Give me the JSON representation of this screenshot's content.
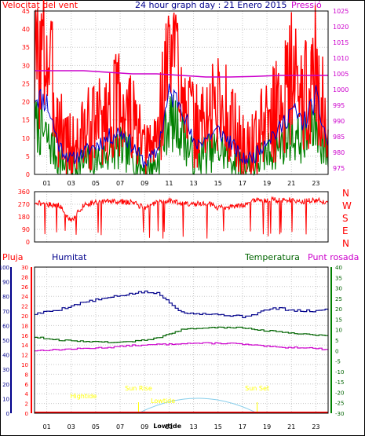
{
  "header": {
    "left_label": "Velocitat del vent",
    "title": "24 hour graph day : 21 Enero 2015",
    "right_label": "Pressió"
  },
  "lower_labels": {
    "rain": "Pluja",
    "humidity": "Humitat",
    "temperature": "Temperatura",
    "dewpoint": "Punt rosada"
  },
  "colors": {
    "wind": "#ff0000",
    "wind_avg": "#0000cc",
    "wind_low": "#008000",
    "pressure": "#cc00cc",
    "humidity": "#00008b",
    "temperature": "#006400",
    "dewpoint": "#cc00cc",
    "sun": "#ffff00",
    "sun_curve": "#87ceeb",
    "grid": "#c8c8c8",
    "frame": "#000000"
  },
  "chart_data": [
    {
      "id": "wind_pressure",
      "type": "line",
      "title": "24 hour graph day : 21 Enero 2015",
      "x_ticks": [
        "01",
        "03",
        "05",
        "07",
        "09",
        "11",
        "13",
        "15",
        "17",
        "19",
        "21",
        "23"
      ],
      "y_left": {
        "label": "Velocitat del vent",
        "range": [
          0,
          45
        ],
        "ticks": [
          0,
          5,
          10,
          15,
          20,
          25,
          30,
          35,
          40,
          45
        ]
      },
      "y_right": {
        "label": "Pressió",
        "range": [
          973,
          1025
        ],
        "ticks": [
          975,
          980,
          985,
          990,
          995,
          1000,
          1005,
          1010,
          1015,
          1020,
          1025
        ]
      },
      "series": [
        {
          "name": "Velocitat del vent",
          "axis": "left",
          "x": [
            0,
            1,
            2,
            3,
            4,
            5,
            6,
            7,
            8,
            9,
            10,
            11,
            12,
            13,
            14,
            15,
            16,
            17,
            18,
            19,
            20,
            21,
            22,
            23,
            24
          ],
          "values": [
            30,
            34,
            14,
            7,
            11,
            14,
            17,
            20,
            15,
            5,
            10,
            34,
            30,
            12,
            15,
            20,
            15,
            7,
            8,
            15,
            18,
            27,
            20,
            29,
            10
          ]
        },
        {
          "name": "Wind average",
          "axis": "left",
          "x": [
            0,
            1,
            2,
            3,
            4,
            5,
            6,
            7,
            8,
            9,
            10,
            11,
            12,
            13,
            14,
            15,
            16,
            17,
            18,
            19,
            20,
            21,
            22,
            23,
            24
          ],
          "values": [
            22,
            20,
            8,
            4,
            6,
            8,
            10,
            12,
            8,
            3,
            6,
            22,
            20,
            8,
            10,
            12,
            9,
            4,
            5,
            10,
            12,
            18,
            14,
            21,
            8
          ]
        },
        {
          "name": "Wind low",
          "axis": "left",
          "x": [
            0,
            1,
            2,
            3,
            4,
            5,
            6,
            7,
            8,
            9,
            10,
            11,
            12,
            13,
            14,
            15,
            16,
            17,
            18,
            19,
            20,
            21,
            22,
            23,
            24
          ],
          "values": [
            14,
            10,
            4,
            2,
            3,
            4,
            6,
            7,
            5,
            1,
            3,
            15,
            12,
            4,
            6,
            7,
            5,
            2,
            3,
            6,
            8,
            11,
            9,
            13,
            5
          ]
        },
        {
          "name": "Pressió",
          "axis": "right",
          "x": [
            0,
            2,
            4,
            6,
            8,
            10,
            12,
            14,
            16,
            18,
            20,
            22,
            24
          ],
          "values": [
            1006,
            1006,
            1006,
            1005.5,
            1005,
            1005,
            1004.5,
            1004,
            1004,
            1004.2,
            1004.5,
            1004.5,
            1004.5
          ]
        }
      ]
    },
    {
      "id": "wind_direction",
      "type": "line",
      "x_ticks": [],
      "y_left": {
        "range": [
          0,
          360
        ],
        "ticks": [
          0,
          90,
          180,
          270,
          360
        ]
      },
      "y_right": {
        "ticks": [
          "N",
          "W",
          "S",
          "E",
          "N"
        ]
      },
      "series": [
        {
          "name": "Wind direction",
          "x": [
            0,
            1,
            2,
            3,
            4,
            5,
            6,
            7,
            8,
            9,
            10,
            11,
            12,
            13,
            14,
            15,
            16,
            17,
            18,
            19,
            20,
            21,
            22,
            23,
            24
          ],
          "values": [
            285,
            270,
            265,
            150,
            260,
            290,
            290,
            290,
            285,
            240,
            290,
            295,
            280,
            270,
            280,
            245,
            250,
            260,
            295,
            300,
            300,
            300,
            290,
            300,
            285
          ]
        }
      ]
    },
    {
      "id": "humidity_temperature",
      "type": "line",
      "x_ticks": [
        "01",
        "03",
        "05",
        "07",
        "09",
        "11",
        "13",
        "15",
        "17",
        "19",
        "21",
        "23"
      ],
      "y_humidity": {
        "label": "Humitat",
        "range": [
          0,
          100
        ],
        "ticks": [
          0,
          10,
          20,
          30,
          40,
          50,
          60,
          70,
          80,
          90,
          100
        ]
      },
      "y_rain": {
        "label": "Pluja",
        "range": [
          0,
          30
        ],
        "ticks": [
          0,
          2,
          4,
          6,
          8,
          10,
          12,
          14,
          16,
          18,
          20,
          22,
          24,
          26,
          28,
          30
        ]
      },
      "y_temperature": {
        "label": "Temperatura",
        "range": [
          -30,
          40
        ],
        "ticks": [
          -30,
          -25,
          -20,
          -15,
          -10,
          -5,
          0,
          5,
          10,
          15,
          20,
          25,
          30,
          35,
          40
        ]
      },
      "series": [
        {
          "name": "Humitat",
          "axis": "humidity",
          "x": [
            0,
            2,
            4,
            6,
            8,
            9,
            10,
            11,
            12,
            14,
            16,
            17,
            18,
            19,
            20,
            21,
            22,
            23,
            24
          ],
          "values": [
            68,
            71,
            76,
            79,
            82,
            83,
            82,
            76,
            69,
            68,
            67,
            66,
            68,
            71,
            72,
            70,
            70,
            70,
            71
          ]
        },
        {
          "name": "Temperatura",
          "axis": "temperature",
          "x": [
            0,
            2,
            4,
            6,
            7,
            8,
            9,
            10,
            11,
            12,
            14,
            16,
            17,
            18,
            20,
            22,
            24
          ],
          "values": [
            6.5,
            5,
            4.5,
            4,
            4,
            4.5,
            5,
            6,
            8,
            10,
            11,
            11,
            11,
            10,
            9,
            8,
            7
          ]
        },
        {
          "name": "Punt rosada",
          "axis": "temperature",
          "x": [
            0,
            2,
            4,
            6,
            8,
            9,
            10,
            11,
            12,
            14,
            16,
            17,
            18,
            20,
            22,
            24
          ],
          "values": [
            0,
            0.5,
            1,
            1.5,
            2.5,
            2.5,
            3,
            3,
            3.5,
            3.5,
            3.5,
            3,
            2.5,
            1.5,
            1.5,
            0.5
          ]
        },
        {
          "name": "Pluja",
          "axis": "rain",
          "x": [
            0
          ],
          "values": [
            0
          ]
        }
      ],
      "annotations": [
        {
          "text": "Sun Rise",
          "x": 8.5
        },
        {
          "text": "Sun Set",
          "x": 18.2
        },
        {
          "text": "Hightide",
          "x": 4.0
        },
        {
          "text": "Lowtide",
          "x": 10.4
        },
        {
          "text": "Lowtide",
          "x": 12.0
        }
      ]
    }
  ]
}
